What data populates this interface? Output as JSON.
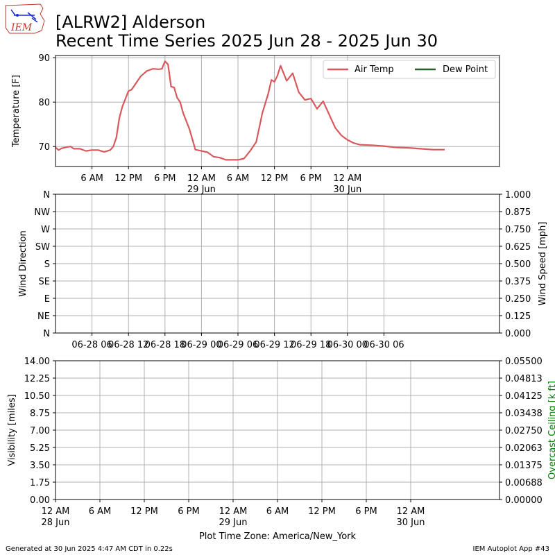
{
  "header": {
    "logo_text": "IEM",
    "title_line1": "[ALRW2] Alderson",
    "title_line2": "Recent Time Series 2025 Jun 28 - 2025 Jun 30"
  },
  "footer": {
    "generated": "Generated at 30 Jun 2025 4:47 AM CDT in 0.22s",
    "app": "IEM Autoplot App #43",
    "timezone_label": "Plot Time Zone: America/New_York"
  },
  "colors": {
    "air_temp": "#d9585e",
    "dew_point": "#2e5e2e",
    "ceiling_label": "#008000"
  },
  "chart_data": [
    {
      "type": "line",
      "panel": "temperature",
      "ylabel": "Temperature [F]",
      "xlim": [
        0,
        73
      ],
      "ylim": [
        65.5,
        90.5
      ],
      "yticks": [
        70,
        80,
        90
      ],
      "xticks": [
        {
          "h": 6,
          "label": "6 AM"
        },
        {
          "h": 12,
          "label": "12 PM"
        },
        {
          "h": 18,
          "label": "6 PM"
        },
        {
          "h": 24,
          "label": "12 AM",
          "sub": "29 Jun"
        },
        {
          "h": 30,
          "label": "6 AM"
        },
        {
          "h": 36,
          "label": "12 PM"
        },
        {
          "h": 42,
          "label": "6 PM"
        },
        {
          "h": 48,
          "label": "12 AM",
          "sub": "30 Jun"
        }
      ],
      "legend": {
        "position": "top-right",
        "entries": [
          "Air Temp",
          "Dew Point"
        ]
      },
      "grid": true,
      "series": [
        {
          "name": "Air Temp",
          "x": [
            0,
            0.5,
            1,
            2,
            2.5,
            3,
            4,
            5,
            6,
            7,
            8,
            9,
            9.5,
            10,
            10.5,
            11,
            12,
            12.5,
            13,
            14,
            15,
            16,
            17,
            17.5,
            18,
            18.5,
            19,
            19.5,
            20,
            20.5,
            21,
            22,
            23,
            24,
            25,
            26,
            27,
            28,
            29,
            30,
            31,
            32,
            33,
            34,
            35,
            35.5,
            36,
            36.5,
            37,
            38,
            39,
            40,
            41,
            42,
            43,
            44,
            45,
            46,
            47,
            48,
            49,
            50,
            52,
            54,
            56,
            58,
            60,
            62,
            64
          ],
          "y": [
            69.8,
            69.2,
            69.6,
            69.9,
            70.0,
            69.5,
            69.5,
            69.0,
            69.2,
            69.2,
            68.8,
            69.2,
            70.0,
            72.0,
            76.5,
            79.0,
            82.5,
            82.8,
            83.8,
            85.8,
            87.0,
            87.5,
            87.4,
            87.5,
            89.2,
            88.5,
            83.5,
            83.3,
            81.0,
            80.0,
            77.5,
            74.0,
            69.3,
            69.0,
            68.7,
            67.7,
            67.5,
            67.0,
            67.0,
            67.0,
            67.3,
            69.0,
            71.0,
            77.5,
            82.0,
            85.0,
            84.6,
            86.0,
            88.2,
            84.8,
            86.5,
            82.2,
            80.5,
            80.8,
            78.5,
            80.2,
            77.2,
            74.2,
            72.5,
            71.5,
            70.8,
            70.4,
            70.3,
            70.1,
            69.8,
            69.7,
            69.5,
            69.3,
            69.3
          ]
        },
        {
          "name": "Dew Point",
          "x": [],
          "y": []
        }
      ]
    },
    {
      "type": "scatter",
      "panel": "wind",
      "ylabel": "Wind Direction",
      "y2label": "Wind Speed [mph]",
      "xlim": [
        0,
        73
      ],
      "yticks_left": [
        "N",
        "NE",
        "E",
        "SE",
        "S",
        "SW",
        "W",
        "NW",
        "N"
      ],
      "yticks_right": [
        "0.000",
        "0.125",
        "0.250",
        "0.375",
        "0.500",
        "0.625",
        "0.750",
        "0.875",
        "1.000"
      ],
      "xticks": [
        {
          "h": 6,
          "label": "06-28 06"
        },
        {
          "h": 12,
          "label": "06-28 12"
        },
        {
          "h": 18,
          "label": "06-28 18"
        },
        {
          "h": 24,
          "label": "06-29 00"
        },
        {
          "h": 30,
          "label": "06-29 06"
        },
        {
          "h": 36,
          "label": "06-29 12"
        },
        {
          "h": 42,
          "label": "06-29 18"
        },
        {
          "h": 48,
          "label": "06-30 00"
        },
        {
          "h": 54,
          "label": "06-30 06"
        }
      ],
      "grid": true,
      "series": []
    },
    {
      "type": "line",
      "panel": "visibility",
      "ylabel": "Visibility [miles]",
      "y2label": "Overcast Ceiling [k ft]",
      "xlim": [
        0,
        60
      ],
      "yticks_left": [
        "0.00",
        "1.75",
        "3.50",
        "5.25",
        "7.00",
        "8.75",
        "10.50",
        "12.25",
        "14.00"
      ],
      "yticks_right": [
        "0.00000",
        "0.00688",
        "0.01375",
        "0.02063",
        "0.02750",
        "0.03438",
        "0.04125",
        "0.04813",
        "0.05500"
      ],
      "xticks": [
        {
          "h": 0,
          "label": "12 AM",
          "sub": "28 Jun"
        },
        {
          "h": 6,
          "label": "6 AM"
        },
        {
          "h": 12,
          "label": "12 PM"
        },
        {
          "h": 18,
          "label": "6 PM"
        },
        {
          "h": 24,
          "label": "12 AM",
          "sub": "29 Jun"
        },
        {
          "h": 30,
          "label": "6 AM"
        },
        {
          "h": 36,
          "label": "12 PM"
        },
        {
          "h": 42,
          "label": "6 PM"
        },
        {
          "h": 48,
          "label": "12 AM",
          "sub": "30 Jun"
        }
      ],
      "grid": true,
      "series": []
    }
  ]
}
